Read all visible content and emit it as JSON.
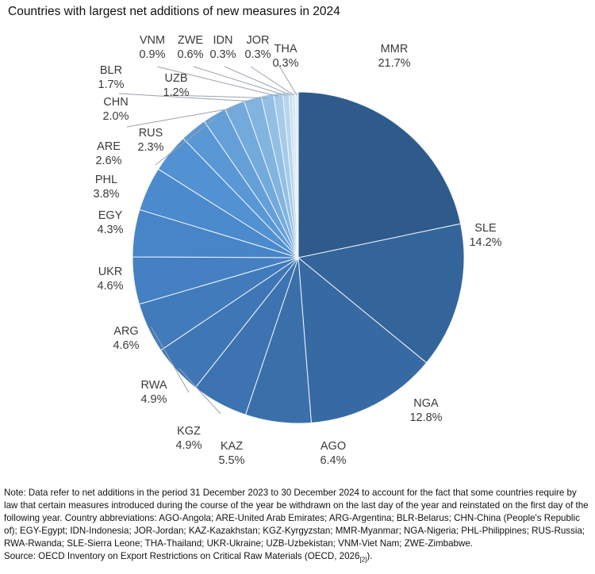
{
  "chart_data": {
    "type": "pie",
    "title": "Countries with largest net additions of new measures in 2024",
    "order": "clockwise from top",
    "slices": [
      {
        "label": "MMR",
        "value": 21.7,
        "display": "21.7%",
        "color": "#2e5b8b"
      },
      {
        "label": "SLE",
        "value": 14.2,
        "display": "14.2%",
        "color": "#34659a"
      },
      {
        "label": "NGA",
        "value": 12.8,
        "display": "12.8%",
        "color": "#376aa3"
      },
      {
        "label": "AGO",
        "value": 6.4,
        "display": "6.4%",
        "color": "#3a6faa"
      },
      {
        "label": "KAZ",
        "value": 5.5,
        "display": "5.5%",
        "color": "#3c73b0"
      },
      {
        "label": "KGZ",
        "value": 4.9,
        "display": "4.9%",
        "color": "#3f77b6"
      },
      {
        "label": "RWA",
        "value": 4.9,
        "display": "4.9%",
        "color": "#417bbc"
      },
      {
        "label": "ARG",
        "value": 4.6,
        "display": "4.6%",
        "color": "#4480c2"
      },
      {
        "label": "UKR",
        "value": 4.6,
        "display": "4.6%",
        "color": "#4884c8"
      },
      {
        "label": "EGY",
        "value": 4.3,
        "display": "4.3%",
        "color": "#4b8acd"
      },
      {
        "label": "PHL",
        "value": 3.8,
        "display": "3.8%",
        "color": "#5291d2"
      },
      {
        "label": "ARE",
        "value": 2.6,
        "display": "2.6%",
        "color": "#5a98d5"
      },
      {
        "label": "RUS",
        "value": 2.3,
        "display": "2.3%",
        "color": "#649fd8"
      },
      {
        "label": "CHN",
        "value": 2.0,
        "display": "2.0%",
        "color": "#73aadc"
      },
      {
        "label": "BLR",
        "value": 1.7,
        "display": "1.7%",
        "color": "#82b4e0"
      },
      {
        "label": "UZB",
        "value": 1.2,
        "display": "1.2%",
        "color": "#93bfe5"
      },
      {
        "label": "VNM",
        "value": 0.9,
        "display": "0.9%",
        "color": "#a6cbea"
      },
      {
        "label": "ZWE",
        "value": 0.6,
        "display": "0.6%",
        "color": "#b7d5ee"
      },
      {
        "label": "IDN",
        "value": 0.3,
        "display": "0.3%",
        "color": "#c6def2"
      },
      {
        "label": "JOR",
        "value": 0.3,
        "display": "0.3%",
        "color": "#d3e6f5"
      },
      {
        "label": "THA",
        "value": 0.3,
        "display": "0.3%",
        "color": "#e0eef8"
      }
    ]
  },
  "note": {
    "text": "Note: Data refer to net additions in the period 31 December 2023 to 30 December 2024 to account for the fact that some countries require by law that certain measures introduced during the course of the year be withdrawn on the last day of the year and reinstated on the first day of the following year. Country abbreviations: AGO-Angola; ARE-United Arab Emirates; ARG-Argentina; BLR-Belarus; CHN-China (People's Republic of); EGY-Egypt; IDN-Indonesia; JOR-Jordan; KAZ-Kazakhstan; KGZ-Kyrgyzstan; MMR-Myanmar; NGA-Nigeria; PHL-Philippines; RUS-Russia; RWA-Rwanda; SLE-Sierra Leone; THA-Thailand; UKR-Ukraine; UZB-Uzbekistan; VNM-Viet Nam; ZWE-Zimbabwe.",
    "source": "Source: OECD Inventory on Export Restrictions on Critical Raw Materials (OECD, 2026",
    "source_ref": "[2]",
    "source_end": ")."
  }
}
